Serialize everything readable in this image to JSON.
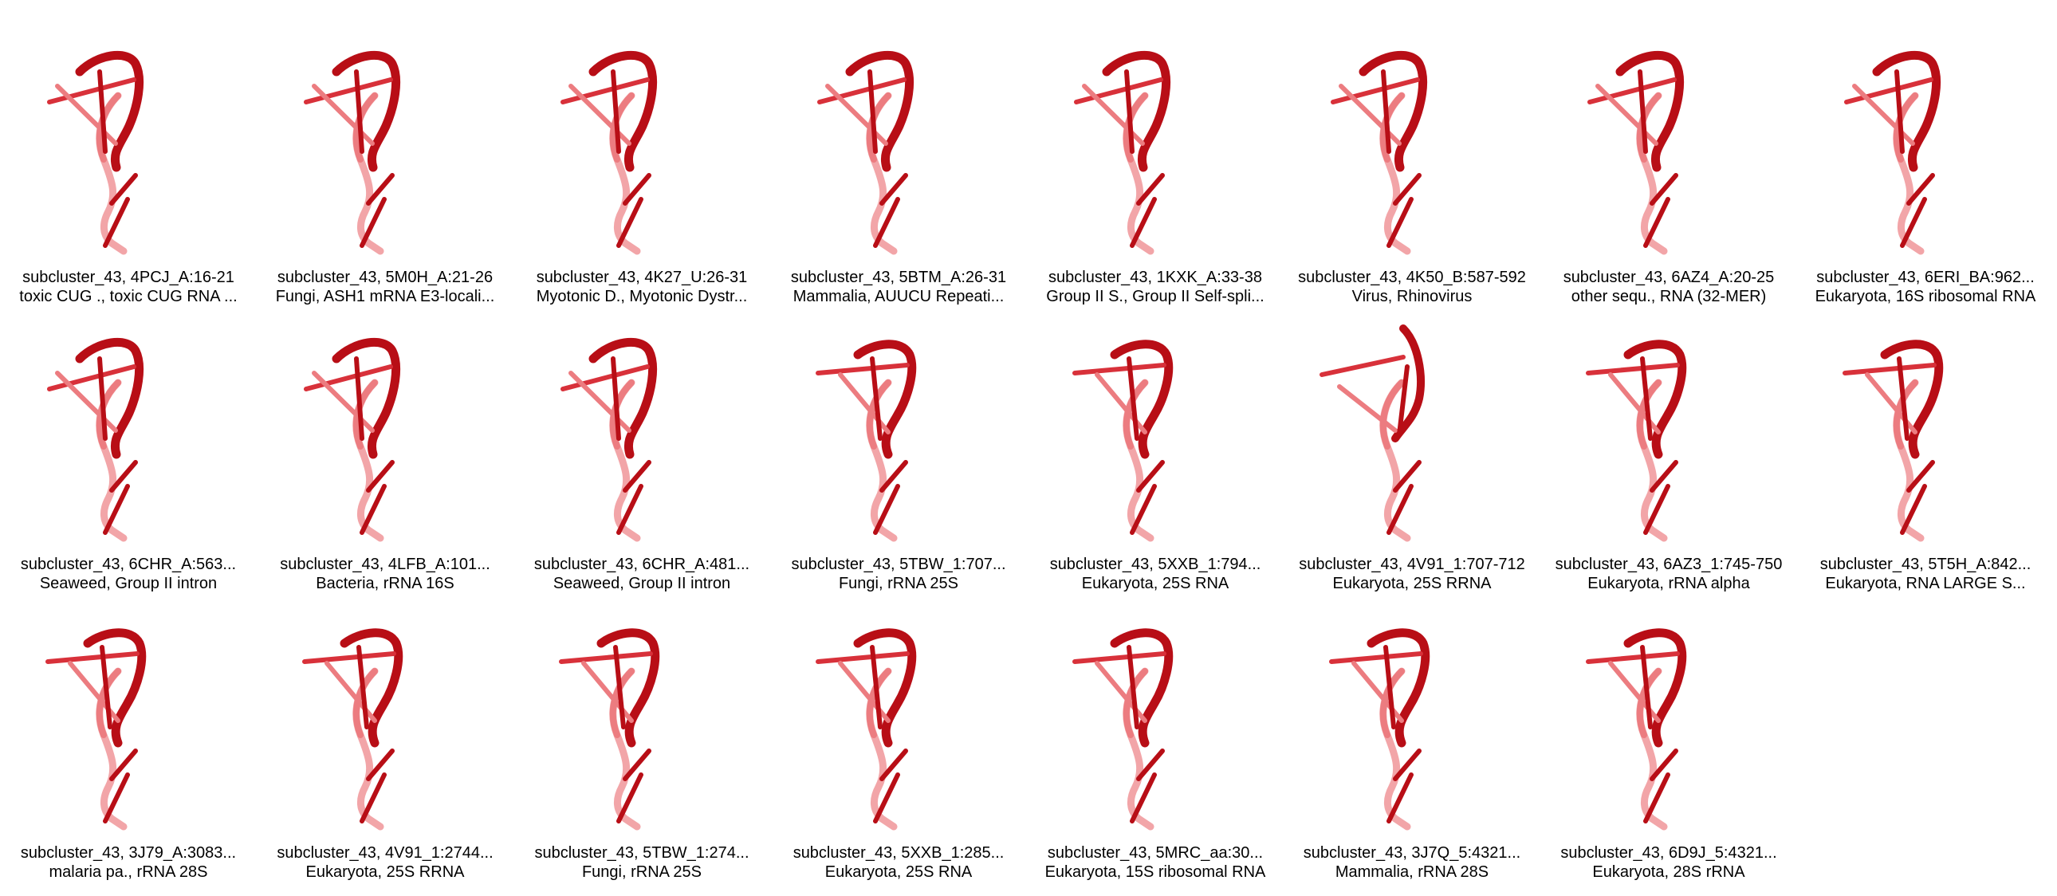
{
  "colors": {
    "dark": "#b80e16",
    "mid": "#d8313a",
    "light": "#ec7c80",
    "pale": "#f2a5a8"
  },
  "structures": [
    {
      "title": "subcluster_43, 4PCJ_A:16-21",
      "desc": "toxic CUG ., toxic CUG RNA ...",
      "style": "a"
    },
    {
      "title": "subcluster_43, 5M0H_A:21-26",
      "desc": "Fungi, ASH1 mRNA E3-locali...",
      "style": "a"
    },
    {
      "title": "subcluster_43, 4K27_U:26-31",
      "desc": "Myotonic D., Myotonic Dystr...",
      "style": "a"
    },
    {
      "title": "subcluster_43, 5BTM_A:26-31",
      "desc": "Mammalia, AUUCU Repeati...",
      "style": "a"
    },
    {
      "title": "subcluster_43, 1KXK_A:33-38",
      "desc": "Group II S., Group II Self-spli...",
      "style": "a"
    },
    {
      "title": "subcluster_43, 4K50_B:587-592",
      "desc": "Virus, Rhinovirus",
      "style": "a"
    },
    {
      "title": "subcluster_43, 6AZ4_A:20-25",
      "desc": "other sequ., RNA (32-MER)",
      "style": "a"
    },
    {
      "title": "subcluster_43, 6ERI_BA:962...",
      "desc": "Eukaryota, 16S ribosomal RNA",
      "style": "a"
    },
    {
      "title": "subcluster_43, 6CHR_A:563...",
      "desc": "Seaweed, Group II intron",
      "style": "a"
    },
    {
      "title": "subcluster_43, 4LFB_A:101...",
      "desc": "Bacteria, rRNA 16S",
      "style": "a"
    },
    {
      "title": "subcluster_43, 6CHR_A:481...",
      "desc": "Seaweed, Group II intron",
      "style": "a"
    },
    {
      "title": "subcluster_43, 5TBW_1:707...",
      "desc": "Fungi, rRNA 25S",
      "style": "b"
    },
    {
      "title": "subcluster_43, 5XXB_1:794...",
      "desc": "Eukaryota, 25S RNA",
      "style": "b"
    },
    {
      "title": "subcluster_43, 4V91_1:707-712",
      "desc": "Eukaryota, 25S RRNA",
      "style": "c"
    },
    {
      "title": "subcluster_43, 6AZ3_1:745-750",
      "desc": "Eukaryota, rRNA alpha",
      "style": "b"
    },
    {
      "title": "subcluster_43, 5T5H_A:842...",
      "desc": "Eukaryota, RNA LARGE S...",
      "style": "b"
    },
    {
      "title": "subcluster_43, 3J79_A:3083...",
      "desc": "malaria pa., rRNA 28S",
      "style": "b"
    },
    {
      "title": "subcluster_43, 4V91_1:2744...",
      "desc": "Eukaryota, 25S RRNA",
      "style": "b"
    },
    {
      "title": "subcluster_43, 5TBW_1:274...",
      "desc": "Fungi, rRNA 25S",
      "style": "b"
    },
    {
      "title": "subcluster_43, 5XXB_1:285...",
      "desc": "Eukaryota, 25S RNA",
      "style": "b"
    },
    {
      "title": "subcluster_43, 5MRC_aa:30...",
      "desc": "Eukaryota, 15S ribosomal RNA",
      "style": "b"
    },
    {
      "title": "subcluster_43, 3J7Q_5:4321...",
      "desc": "Mammalia, rRNA 28S",
      "style": "b"
    },
    {
      "title": "subcluster_43, 6D9J_5:4321...",
      "desc": "Eukaryota, 28S rRNA",
      "style": "b"
    }
  ]
}
